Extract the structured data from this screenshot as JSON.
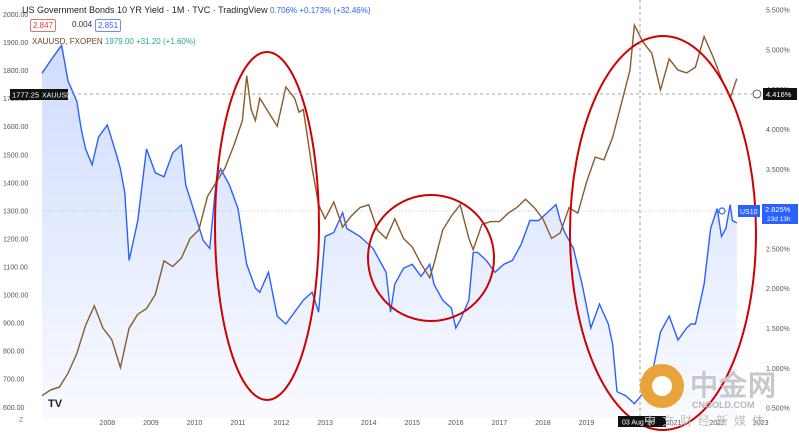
{
  "header": {
    "title": "US Government Bonds 10 YR Yield · 1M · TVC · TradingView",
    "stats": "0.706% +0.173% (+32.46%)",
    "bid": "2.847",
    "spread": "0.004",
    "ask": "2.851",
    "symbol2": "XAUUSD, FXOPEN",
    "symbol2_values": "1979.00 +31.20 (+1.60%)"
  },
  "left_badge": {
    "value": "1777.25",
    "label": "XAUUSD"
  },
  "right_badges": {
    "gold_value": "4.416%",
    "us10_label": "US10",
    "us10_value": "2.825%",
    "us10_sub": "23d 13h"
  },
  "crosshair_date": "03 Aug '20",
  "watermark": {
    "cn": "中金网",
    "url": "CNGOLD.COM",
    "sub": "中文财经新媒体"
  },
  "tv_logo": "TV",
  "corner_mark": "Z",
  "chart_data": {
    "type": "line",
    "x_ticks": [
      "2008",
      "2009",
      "2010",
      "2011",
      "2012",
      "2013",
      "2014",
      "2015",
      "2016",
      "2017",
      "2018",
      "2019",
      "2020",
      "2021",
      "2022",
      "2023"
    ],
    "left_axis": {
      "ticks": [
        "2000.00",
        "1900.00",
        "1800.00",
        "1700.00",
        "1600.00",
        "1500.00",
        "1400.00",
        "1300.00",
        "1200.00",
        "1100.00",
        "1000.00",
        "900.00",
        "800.00",
        "700.00",
        "600.00"
      ],
      "range": [
        560,
        2050
      ]
    },
    "right_axis": {
      "ticks": [
        "5.500%",
        "5.000%",
        "4.500%",
        "4.000%",
        "3.500%",
        "3.000%",
        "2.500%",
        "2.000%",
        "1.500%",
        "1.000%",
        "0.500%"
      ],
      "range": [
        0.37,
        5.62
      ]
    },
    "series": [
      {
        "name": "US Government Bonds 10 YR Yield",
        "color": "#2962ff",
        "axis": "right",
        "x": [
          2007.0,
          2007.25,
          2007.45,
          2007.6,
          2007.8,
          2007.9,
          2008.0,
          2008.15,
          2008.3,
          2008.5,
          2008.7,
          2008.8,
          2008.9,
          2009.0,
          2009.2,
          2009.4,
          2009.6,
          2009.8,
          2010.0,
          2010.2,
          2010.3,
          2010.5,
          2010.7,
          2010.85,
          2011.0,
          2011.1,
          2011.3,
          2011.5,
          2011.7,
          2011.9,
          2012.0,
          2012.2,
          2012.4,
          2012.6,
          2012.8,
          2013.0,
          2013.2,
          2013.35,
          2013.5,
          2013.7,
          2013.9,
          2014.0,
          2014.3,
          2014.6,
          2014.9,
          2015.0,
          2015.1,
          2015.3,
          2015.5,
          2015.7,
          2015.9,
          2016.0,
          2016.2,
          2016.4,
          2016.5,
          2016.6,
          2016.8,
          2016.9,
          2017.0,
          2017.2,
          2017.4,
          2017.6,
          2017.8,
          2018.0,
          2018.2,
          2018.4,
          2018.6,
          2018.8,
          2018.9,
          2019.0,
          2019.2,
          2019.4,
          2019.6,
          2019.8,
          2020.0,
          2020.1,
          2020.2,
          2020.4,
          2020.6,
          2020.8,
          2020.9,
          2021.0,
          2021.2,
          2021.4,
          2021.6,
          2021.8,
          2021.9,
          2022.0,
          2022.2,
          2022.35,
          2022.5,
          2022.6,
          2022.7,
          2022.8,
          2022.85,
          2022.95
        ],
        "values": [
          4.7,
          4.9,
          5.05,
          4.6,
          4.35,
          4.0,
          3.75,
          3.55,
          3.9,
          4.05,
          3.7,
          3.5,
          3.2,
          2.35,
          2.85,
          3.75,
          3.45,
          3.4,
          3.7,
          3.8,
          3.3,
          2.95,
          2.6,
          2.5,
          3.35,
          3.5,
          3.3,
          3.0,
          2.3,
          2.0,
          1.95,
          2.2,
          1.65,
          1.55,
          1.7,
          1.85,
          1.95,
          1.7,
          2.65,
          2.7,
          2.95,
          2.75,
          2.65,
          2.5,
          2.2,
          1.7,
          2.05,
          2.25,
          2.3,
          2.15,
          2.3,
          2.05,
          1.85,
          1.75,
          1.5,
          1.6,
          1.85,
          2.45,
          2.45,
          2.35,
          2.2,
          2.3,
          2.35,
          2.55,
          2.85,
          2.85,
          2.95,
          3.05,
          2.85,
          2.7,
          2.5,
          2.05,
          1.5,
          1.8,
          1.55,
          1.3,
          0.7,
          0.65,
          0.55,
          0.68,
          0.72,
          0.9,
          1.45,
          1.65,
          1.35,
          1.5,
          1.55,
          1.55,
          2.05,
          2.75,
          3.0,
          2.65,
          2.75,
          3.05,
          2.85,
          2.82
        ]
      },
      {
        "name": "XAUUSD",
        "color": "#8b5a2b",
        "axis": "left",
        "x": [
          2007.0,
          2007.2,
          2007.4,
          2007.6,
          2007.8,
          2008.0,
          2008.2,
          2008.4,
          2008.6,
          2008.8,
          2009.0,
          2009.2,
          2009.4,
          2009.6,
          2009.8,
          2010.0,
          2010.2,
          2010.4,
          2010.6,
          2010.8,
          2011.0,
          2011.2,
          2011.4,
          2011.6,
          2011.7,
          2011.8,
          2011.9,
          2012.0,
          2012.2,
          2012.4,
          2012.6,
          2012.8,
          2012.9,
          2013.0,
          2013.2,
          2013.35,
          2013.5,
          2013.7,
          2013.9,
          2014.1,
          2014.3,
          2014.5,
          2014.7,
          2014.9,
          2015.1,
          2015.3,
          2015.5,
          2015.7,
          2015.9,
          2016.0,
          2016.2,
          2016.4,
          2016.6,
          2016.8,
          2016.9,
          2017.1,
          2017.3,
          2017.5,
          2017.7,
          2017.9,
          2018.1,
          2018.3,
          2018.5,
          2018.7,
          2018.9,
          2019.1,
          2019.3,
          2019.5,
          2019.7,
          2019.9,
          2020.1,
          2020.3,
          2020.5,
          2020.6,
          2020.8,
          2021.0,
          2021.2,
          2021.4,
          2021.6,
          2021.8,
          2022.0,
          2022.2,
          2022.4,
          2022.6,
          2022.8,
          2022.95
        ],
        "values": [
          640,
          660,
          670,
          720,
          790,
          890,
          960,
          880,
          840,
          740,
          880,
          930,
          950,
          1000,
          1120,
          1100,
          1130,
          1200,
          1230,
          1350,
          1400,
          1450,
          1530,
          1620,
          1780,
          1660,
          1620,
          1700,
          1650,
          1600,
          1740,
          1700,
          1650,
          1660,
          1450,
          1320,
          1270,
          1330,
          1240,
          1280,
          1310,
          1320,
          1230,
          1200,
          1270,
          1200,
          1170,
          1110,
          1060,
          1110,
          1230,
          1280,
          1320,
          1200,
          1160,
          1250,
          1260,
          1260,
          1290,
          1310,
          1340,
          1310,
          1270,
          1200,
          1220,
          1310,
          1290,
          1400,
          1490,
          1480,
          1560,
          1680,
          1800,
          1960,
          1900,
          1860,
          1730,
          1840,
          1800,
          1790,
          1810,
          1920,
          1850,
          1770,
          1700,
          1770
        ]
      }
    ],
    "crosshair_value": "4.416%"
  }
}
